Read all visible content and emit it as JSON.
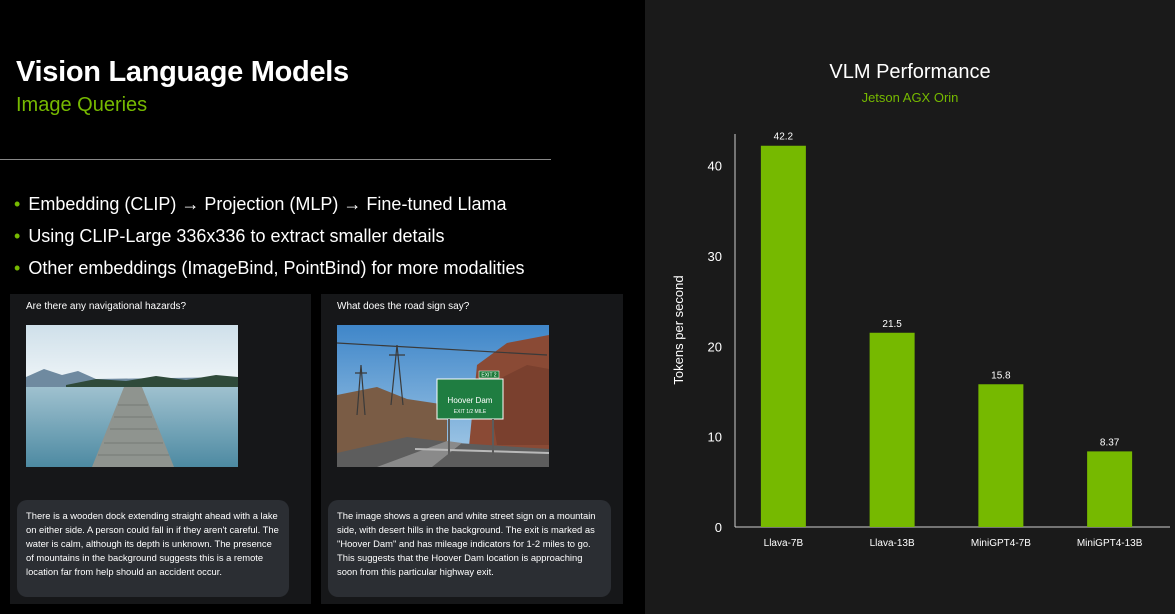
{
  "header": {
    "title": "Vision Language Models",
    "subtitle": "Image Queries"
  },
  "bullets": [
    "Embedding (CLIP) → Projection (MLP) → Fine-tuned Llama",
    "Using CLIP-Large 336x336 to extract smaller details",
    "Other embeddings (ImageBind, PointBind) for more modalities"
  ],
  "examples": [
    {
      "question": "Are there any navigational hazards?",
      "answer": "There is a wooden dock extending straight ahead with a lake on either side. A person could fall in if they aren't careful. The water is calm, although its depth is unknown. The presence of mountains in the background suggests this is a remote location far from help should an accident occur."
    },
    {
      "question": "What does the road sign say?",
      "answer": "The image shows a green and white street sign on a mountain side, with desert hills in the background. The exit is marked as \"Hoover Dam\" and has mileage indicators for 1-2 miles to go. This suggests that the Hoover Dam location is approaching soon from this particular highway exit.",
      "sign": {
        "exit": "EXIT 2",
        "name": "Hoover Dam",
        "line": "EXIT 1/2 MILE"
      }
    }
  ],
  "colors": {
    "accent": "#76b900",
    "panel": "#161719",
    "bubble": "#2b2e33"
  },
  "chart_data": {
    "type": "bar",
    "title": "VLM Performance",
    "subtitle": "Jetson AGX Orin",
    "ylabel": "Tokens per second",
    "xlabel": "",
    "categories": [
      "Llava-7B",
      "Llava-13B",
      "MiniGPT4-7B",
      "MiniGPT4-13B"
    ],
    "values": [
      42.2,
      21.5,
      15.8,
      8.37
    ],
    "value_labels": [
      "42.2",
      "21.5",
      "15.8",
      "8.37"
    ],
    "ylim": [
      0,
      43.5
    ],
    "yticks": [
      0,
      10,
      20,
      30,
      40
    ],
    "grid": false,
    "bar_color": "#76b900"
  }
}
